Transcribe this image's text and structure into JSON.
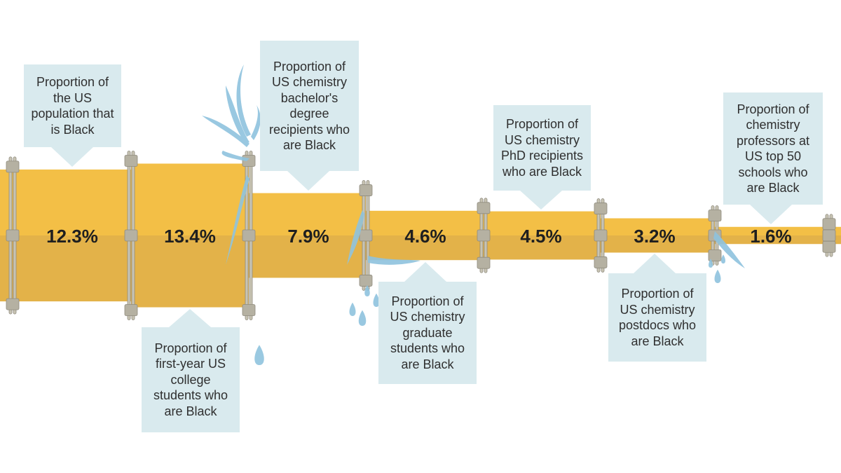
{
  "chart_data": {
    "type": "bar",
    "title": "",
    "xlabel": "",
    "ylabel": "",
    "ylim": [
      0,
      14
    ],
    "unit": "%",
    "categories": [
      "Proportion of the US population that is Black",
      "Proportion of first-year US college students who are Black",
      "Proportion of US chemistry bachelor's degree recipients who are Black",
      "Proportion of US chemistry graduate students who are Black",
      "Proportion of US chemistry PhD recipients who are Black",
      "Proportion of US chemistry postdocs who are Black",
      "Proportion of chemistry professors at US top 50 schools who are Black"
    ],
    "values": [
      12.3,
      13.4,
      7.9,
      4.6,
      4.5,
      3.2,
      1.6
    ],
    "value_labels": [
      "12.3%",
      "13.4%",
      "7.9%",
      "4.6%",
      "4.5%",
      "3.2%",
      "1.6%"
    ]
  },
  "colors": {
    "pipe_top": "#f3bf46",
    "pipe_bottom": "#e3b249",
    "callout_bg": "#d9eaee",
    "text": "#2f2f2f",
    "value_text": "#1f1f1f",
    "flange": "#c8c4b4",
    "flange_edge": "#8f8b7e",
    "water": "#8fc3de"
  }
}
